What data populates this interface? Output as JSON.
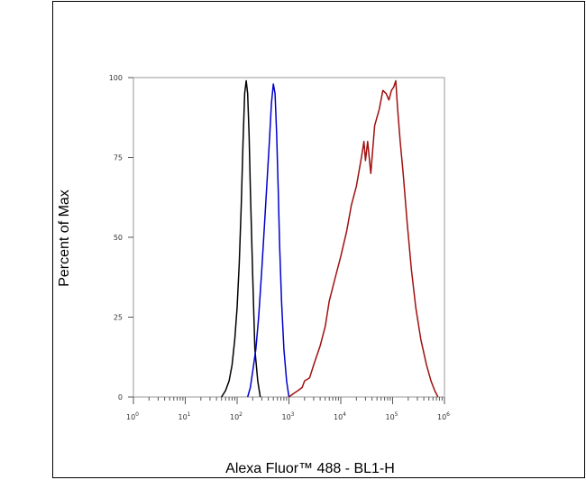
{
  "chart_data": {
    "type": "line",
    "title": "",
    "xlabel": "Alexa Fluor™ 488 - BL1-H",
    "ylabel": "Percent of Max",
    "xscale": "log",
    "xlim": [
      1,
      1000000
    ],
    "ylim": [
      0,
      100
    ],
    "x_tick_labels": [
      {
        "base": "10",
        "exp": "0",
        "value": 1
      },
      {
        "base": "10",
        "exp": "1",
        "value": 10
      },
      {
        "base": "10",
        "exp": "2",
        "value": 100
      },
      {
        "base": "10",
        "exp": "3",
        "value": 1000
      },
      {
        "base": "10",
        "exp": "4",
        "value": 10000
      },
      {
        "base": "10",
        "exp": "5",
        "value": 100000
      },
      {
        "base": "10",
        "exp": "6",
        "value": 1000000
      }
    ],
    "y_ticks": [
      0,
      25,
      50,
      75,
      100
    ],
    "grid": false,
    "legend": "none",
    "series": [
      {
        "color": "#000000",
        "x": [
          50,
          60,
          70,
          80,
          90,
          100,
          110,
          120,
          130,
          140,
          150,
          160,
          170,
          180,
          200,
          220,
          250,
          280
        ],
        "y": [
          0,
          2,
          5,
          10,
          18,
          28,
          42,
          60,
          80,
          95,
          99,
          95,
          82,
          65,
          38,
          15,
          5,
          0
        ]
      },
      {
        "color": "#0000cc",
        "x": [
          160,
          180,
          200,
          230,
          260,
          300,
          340,
          380,
          420,
          460,
          500,
          540,
          580,
          620,
          660,
          720,
          800,
          900,
          1000
        ],
        "y": [
          0,
          3,
          8,
          15,
          25,
          40,
          55,
          68,
          80,
          92,
          98,
          95,
          82,
          65,
          48,
          30,
          15,
          5,
          0
        ]
      },
      {
        "color": "#a01010",
        "x": [
          1000,
          1200,
          1500,
          1800,
          2000,
          2500,
          3000,
          4000,
          5000,
          6000,
          8000,
          10000,
          13000,
          16000,
          20000,
          25000,
          28000,
          30000,
          33000,
          38000,
          45000,
          55000,
          65000,
          75000,
          85000,
          95000,
          105000,
          115000,
          125000,
          140000,
          160000,
          190000,
          230000,
          280000,
          350000,
          450000,
          550000,
          650000,
          750000
        ],
        "y": [
          0,
          1,
          2,
          3,
          5,
          6,
          10,
          16,
          22,
          30,
          38,
          44,
          52,
          60,
          66,
          75,
          80,
          74,
          80,
          70,
          85,
          90,
          96,
          95,
          93,
          96,
          97,
          99,
          90,
          80,
          70,
          55,
          40,
          28,
          18,
          10,
          5,
          2,
          0
        ]
      }
    ]
  }
}
